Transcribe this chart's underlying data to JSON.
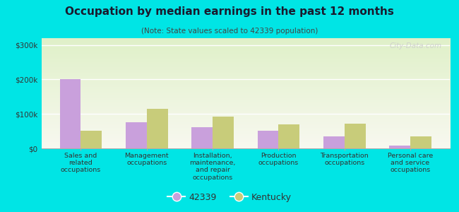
{
  "title": "Occupation by median earnings in the past 12 months",
  "subtitle": "(Note: State values scaled to 42339 population)",
  "categories": [
    "Sales and\nrelated\noccupations",
    "Management\noccupations",
    "Installation,\nmaintenance,\nand repair\noccupations",
    "Production\noccupations",
    "Transportation\noccupations",
    "Personal care\nand service\noccupations"
  ],
  "values_42339": [
    200000,
    75000,
    62000,
    52000,
    35000,
    8000
  ],
  "values_kentucky": [
    52000,
    115000,
    92000,
    70000,
    72000,
    35000
  ],
  "color_42339": "#c9a0dc",
  "color_kentucky": "#c8cc7a",
  "ylim": [
    0,
    320000
  ],
  "yticks": [
    0,
    100000,
    200000,
    300000
  ],
  "ytick_labels": [
    "$0",
    "$100k",
    "$200k",
    "$300k"
  ],
  "legend_42339": "42339",
  "legend_kentucky": "Kentucky",
  "background_color": "#00e5e5",
  "plot_bg_top": "#dff0c8",
  "plot_bg_bottom": "#f8f8f0",
  "watermark": "City-Data.com"
}
